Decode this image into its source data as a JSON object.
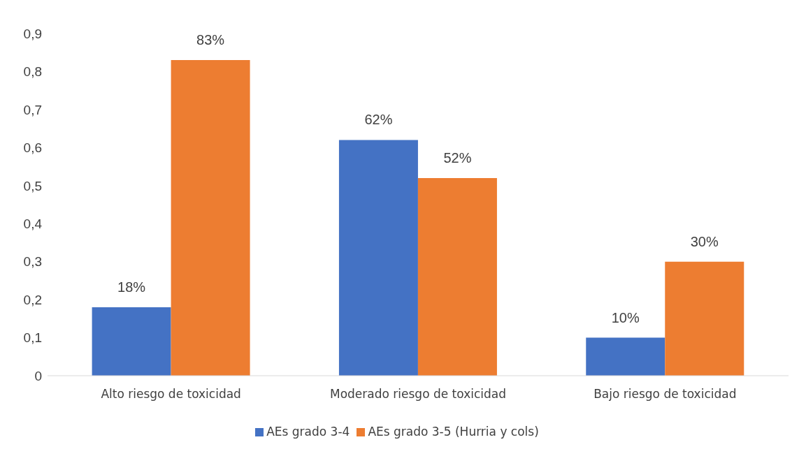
{
  "chart_data": {
    "type": "bar",
    "categories": [
      "Alto riesgo de toxicidad",
      "Moderado riesgo de toxicidad",
      "Bajo riesgo de toxicidad"
    ],
    "series": [
      {
        "name": "AEs grado 3-4",
        "color": "#4472c4",
        "values": [
          0.18,
          0.62,
          0.1
        ],
        "value_labels": [
          "18%",
          "62%",
          "10%"
        ]
      },
      {
        "name": "AEs grado 3-5 (Hurria y cols)",
        "color": "#ed7d31",
        "values": [
          0.83,
          0.52,
          0.3
        ],
        "value_labels": [
          "83%",
          "52%",
          "30%"
        ]
      }
    ],
    "ylim": [
      0,
      0.9
    ],
    "yticks": [
      {
        "value": 0,
        "label": "0"
      },
      {
        "value": 0.1,
        "label": "0,1"
      },
      {
        "value": 0.2,
        "label": "0,2"
      },
      {
        "value": 0.3,
        "label": "0,3"
      },
      {
        "value": 0.4,
        "label": "0,4"
      },
      {
        "value": 0.5,
        "label": "0,5"
      },
      {
        "value": 0.6,
        "label": "0,6"
      },
      {
        "value": 0.7,
        "label": "0,7"
      },
      {
        "value": 0.8,
        "label": "0,8"
      },
      {
        "value": 0.9,
        "label": "0,9"
      }
    ],
    "legend": "bottom"
  }
}
